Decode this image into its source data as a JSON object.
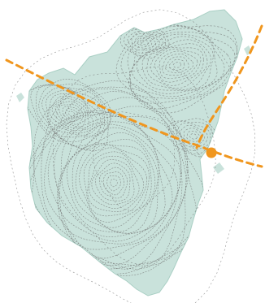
{
  "map": {
    "kind": "topographic contour map",
    "labels": [],
    "colors": {
      "background": "#ffffff",
      "landmass": "#c9e2db",
      "landmass_edge": "#a9cfc4",
      "contour": "#6f6f6f",
      "route": "#f0961e"
    },
    "features": [
      {
        "name": "island-landmass",
        "type": "area"
      },
      {
        "name": "contour-lines",
        "type": "lines",
        "style": "dashed"
      },
      {
        "name": "route-line",
        "type": "path",
        "style": "dashed"
      },
      {
        "name": "branch-route-line",
        "type": "path",
        "style": "dashed"
      },
      {
        "name": "waypoint-marker",
        "type": "point",
        "shape": "circle"
      }
    ]
  }
}
